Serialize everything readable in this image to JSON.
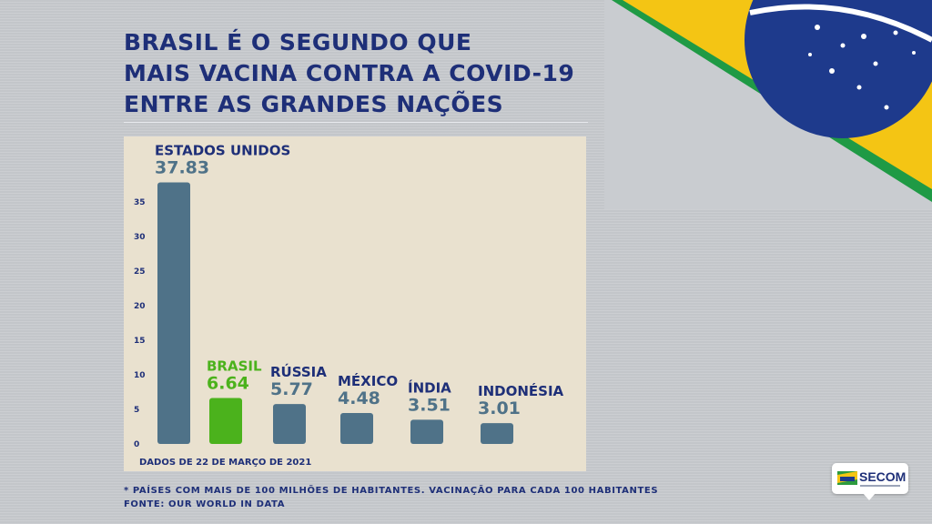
{
  "title_lines": [
    "BRASIL É O SEGUNDO QUE",
    "MAIS VACINA CONTRA A COVID-19",
    "ENTRE AS GRANDES NAÇÕES"
  ],
  "colors": {
    "title": "#1e2f78",
    "bar": "#4f7288",
    "highlight": "#4bb21c",
    "label": "#1e2f78",
    "value": "#4f7288",
    "panel": "#e9e1cf"
  },
  "chart_data": {
    "type": "bar",
    "categories": [
      "ESTADOS UNIDOS",
      "BRASIL",
      "RÚSSIA",
      "MÉXICO",
      "ÍNDIA",
      "INDONÉSIA"
    ],
    "values": [
      37.83,
      6.64,
      5.77,
      4.48,
      3.51,
      3.01
    ],
    "value_labels": [
      "37.83",
      "6.64",
      "5.77",
      "4.48",
      "3.51",
      "3.01"
    ],
    "highlight": "BRASIL",
    "y_ticks": [
      0,
      5,
      10,
      15,
      20,
      25,
      30,
      35
    ],
    "ylim": [
      0,
      38
    ],
    "grid": false,
    "annotation": "DADOS DE 22 DE MARÇO DE 2021"
  },
  "footnotes": [
    "* PAÍSES COM MAIS DE 100 MILHÕES DE HABITANTES. VACINAÇÃO PARA CADA 100 HABITANTES",
    "FONTE: OUR WORLD IN DATA"
  ],
  "logo": {
    "text": "SECOM"
  }
}
